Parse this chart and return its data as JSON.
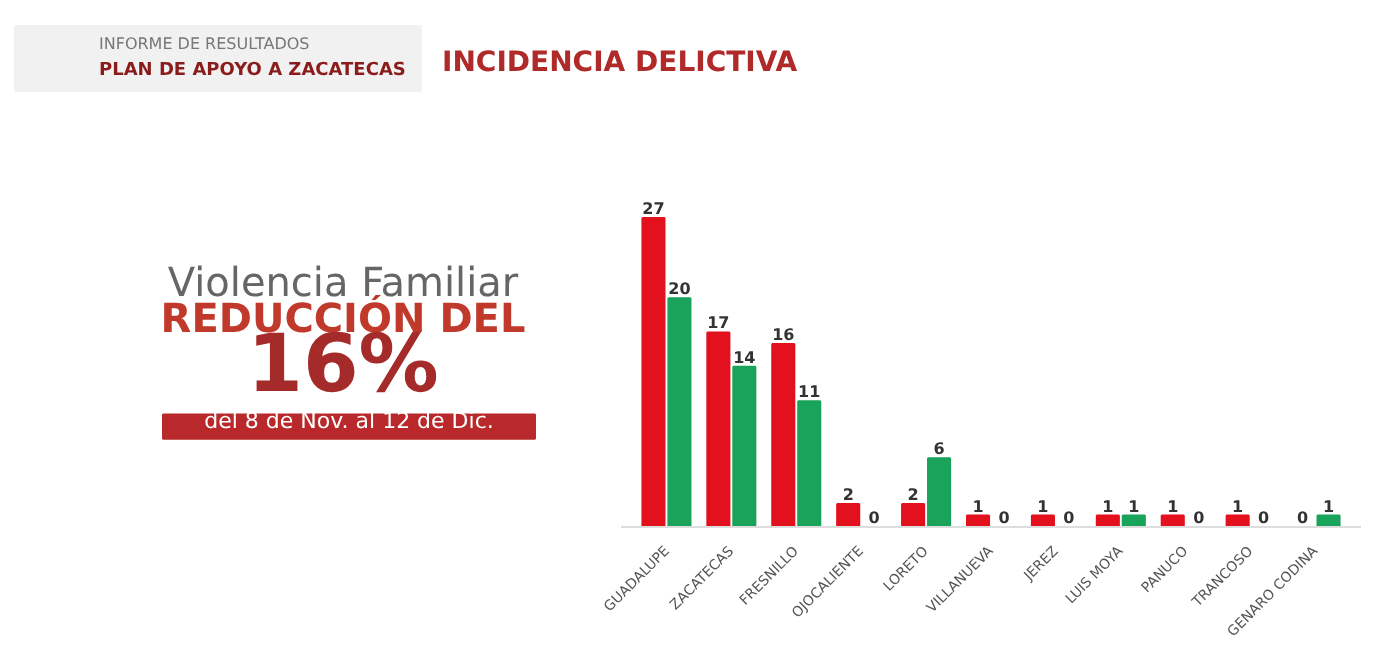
{
  "chart_data": {
    "type": "bar",
    "title": "INCIDENCIA DELICTIVA",
    "annotations": [
      "INFORME DE RESULTADOS",
      "PLAN DE APOYO A ZACATECAS",
      "Violencia Familiar",
      "REDUCCIÓN DEL",
      "16%",
      "del 8 de Nov. al 12 de Dic."
    ],
    "categories": [
      "GUADALUPE",
      "ZACATECAS",
      "FRESNILLO",
      "OJOCALIENTE",
      "LORETO",
      "VILLANUEVA",
      "JEREZ",
      "LUIS MOYA",
      "PANUCO",
      "TRANCOSO",
      "GENARO CODINA"
    ],
    "series": [
      {
        "color": "#e3101e",
        "values": [
          27,
          17,
          16,
          2,
          2,
          1,
          1,
          1,
          1,
          1,
          0
        ]
      },
      {
        "color": "#1aa35a",
        "values": [
          20,
          14,
          11,
          0,
          6,
          0,
          0,
          1,
          0,
          0,
          1
        ]
      }
    ],
    "data_labels": true
  }
}
